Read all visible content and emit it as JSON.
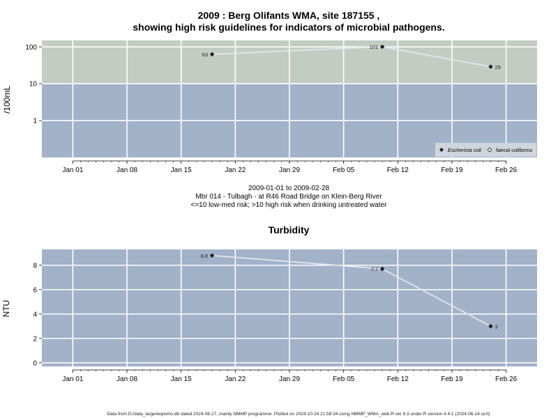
{
  "chart_data": [
    {
      "type": "line",
      "title": "2009 : Berg Olifants WMA, site 187155 ,",
      "subtitle": "showing high risk guidelines for indicators of microbial pathogens.",
      "ylabel": "/100mL",
      "yscale": "log",
      "ylim": [
        0.1,
        150
      ],
      "yticks": [
        1,
        10,
        100
      ],
      "ytick_labels": [
        "1",
        "10",
        "100"
      ],
      "xlim": [
        "2008-12-28",
        "2009-03-02"
      ],
      "xticks": [
        "2009-01-01",
        "2009-01-08",
        "2009-01-15",
        "2009-01-22",
        "2009-01-29",
        "2009-02-05",
        "2009-02-12",
        "2009-02-19",
        "2009-02-26"
      ],
      "xtick_labels": [
        "Jan 01",
        "Jan 08",
        "Jan 15",
        "Jan 22",
        "Jan 29",
        "Feb 05",
        "Feb 12",
        "Feb 19",
        "Feb 26"
      ],
      "grid": true,
      "bands": [
        {
          "from": 0.1,
          "to": 10,
          "color": "#a2b2c9",
          "meaning": "low-med risk"
        },
        {
          "from": 10,
          "to": 150,
          "color": "#c2ccc2",
          "meaning": "high risk"
        }
      ],
      "series": [
        {
          "name": "Eschericia coli",
          "marker": "diamond-filled",
          "x": [
            "2009-01-19",
            "2009-02-10",
            "2009-02-24"
          ],
          "y": [
            63,
            101,
            29
          ],
          "labels": [
            "63",
            "101",
            "29"
          ],
          "label_side": [
            "left",
            "left",
            "right"
          ]
        }
      ],
      "legend": {
        "placement": "bottom-right",
        "items": [
          {
            "label": "Eschericia coli",
            "marker": "diamond-filled",
            "italic": true
          },
          {
            "label": "faecal coliforms",
            "marker": "diamond-open",
            "italic": false
          }
        ]
      },
      "caption_lines": [
        "2009-01-01 to 2009-02-28",
        "Mbr 014 - Tulbagh - at R46 Road Bridge on Klein-Berg River",
        "<=10 low-med risk; >10 high risk when drinking untreated water"
      ]
    },
    {
      "type": "line",
      "title": "Turbidity",
      "ylabel": "NTU",
      "yscale": "linear",
      "ylim": [
        -0.3,
        9.3
      ],
      "yticks": [
        0,
        2,
        4,
        6,
        8
      ],
      "ytick_labels": [
        "0",
        "2",
        "4",
        "6",
        "8"
      ],
      "xlim": [
        "2008-12-28",
        "2009-03-02"
      ],
      "xticks": [
        "2009-01-01",
        "2009-01-08",
        "2009-01-15",
        "2009-01-22",
        "2009-01-29",
        "2009-02-05",
        "2009-02-12",
        "2009-02-19",
        "2009-02-26"
      ],
      "xtick_labels": [
        "Jan 01",
        "Jan 08",
        "Jan 15",
        "Jan 22",
        "Jan 29",
        "Feb 05",
        "Feb 12",
        "Feb 19",
        "Feb 26"
      ],
      "grid": true,
      "background": "#a2b2c9",
      "series": [
        {
          "marker": "diamond-filled",
          "x": [
            "2009-01-19",
            "2009-02-10",
            "2009-02-24"
          ],
          "y": [
            8.8,
            7.7,
            3
          ],
          "labels": [
            "8.8",
            "7.7",
            "3"
          ],
          "label_side": [
            "left",
            "left",
            "right"
          ]
        }
      ]
    }
  ],
  "footer": "Data from D:/data_large/wq/wms.db dated 2024-08-27, mainly NMMP programme. Plotted on 2024-10-24 21:58:34 using NMMP_WMA_web.R ver 9.3 under R version 4.4.1 (2024-06-14 ucrt)"
}
